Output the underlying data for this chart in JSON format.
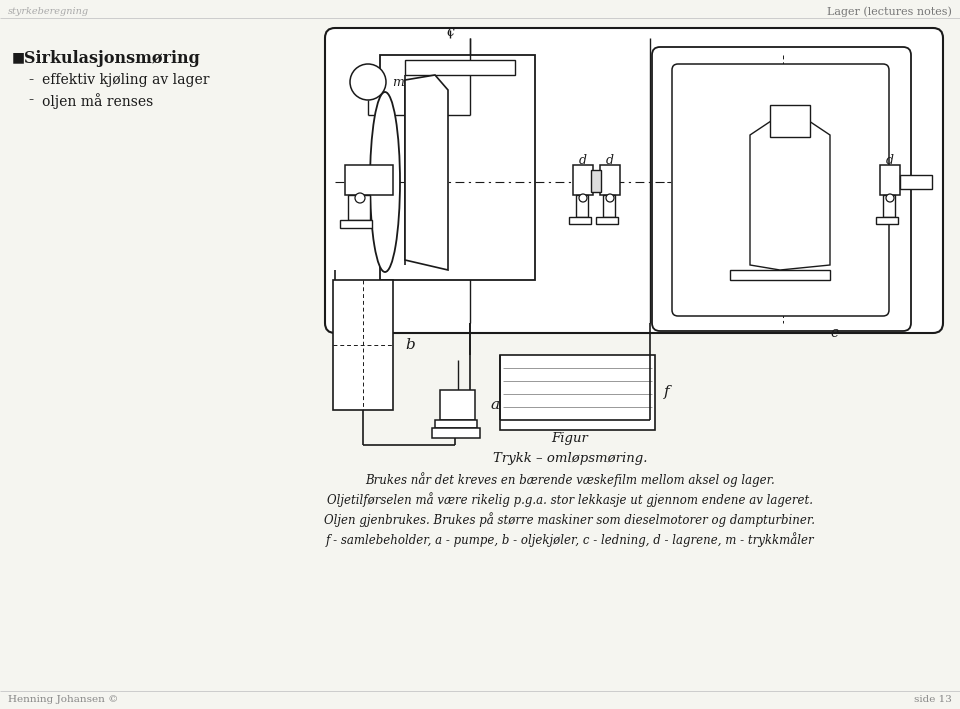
{
  "bg_color": "#f5f5f0",
  "header_line_color": "#cccccc",
  "footer_line_color": "#cccccc",
  "logo_text": "styrkeberegning",
  "header_right_text": "Lager (lectures notes)",
  "footer_left_text": "Henning Johansen ©",
  "footer_right_text": "side 13",
  "bullet_title": "Sirkulasjonsmøring",
  "bullet_item1": "effektiv kjøling av lager",
  "bullet_item2": "oljen må renses",
  "caption_line1": "Figur",
  "caption_line2": "Trykk – omløpsmøring.",
  "caption_line3": "Brukes når det kreves en bærende væskefilm mellom aksel og lager.",
  "caption_line4": "Oljetilførselen må være rikelig p.g.a. stor lekkasje ut gjennom endene av lageret.",
  "caption_line5": "Oljen gjenbrukes. Brukes på større maskiner som dieselmotorer og dampturbiner.",
  "caption_line6": "f - samlebeholder, a - pumpe, b - oljekjøler, c - ledning, d - lagrene, m - trykkmåler"
}
